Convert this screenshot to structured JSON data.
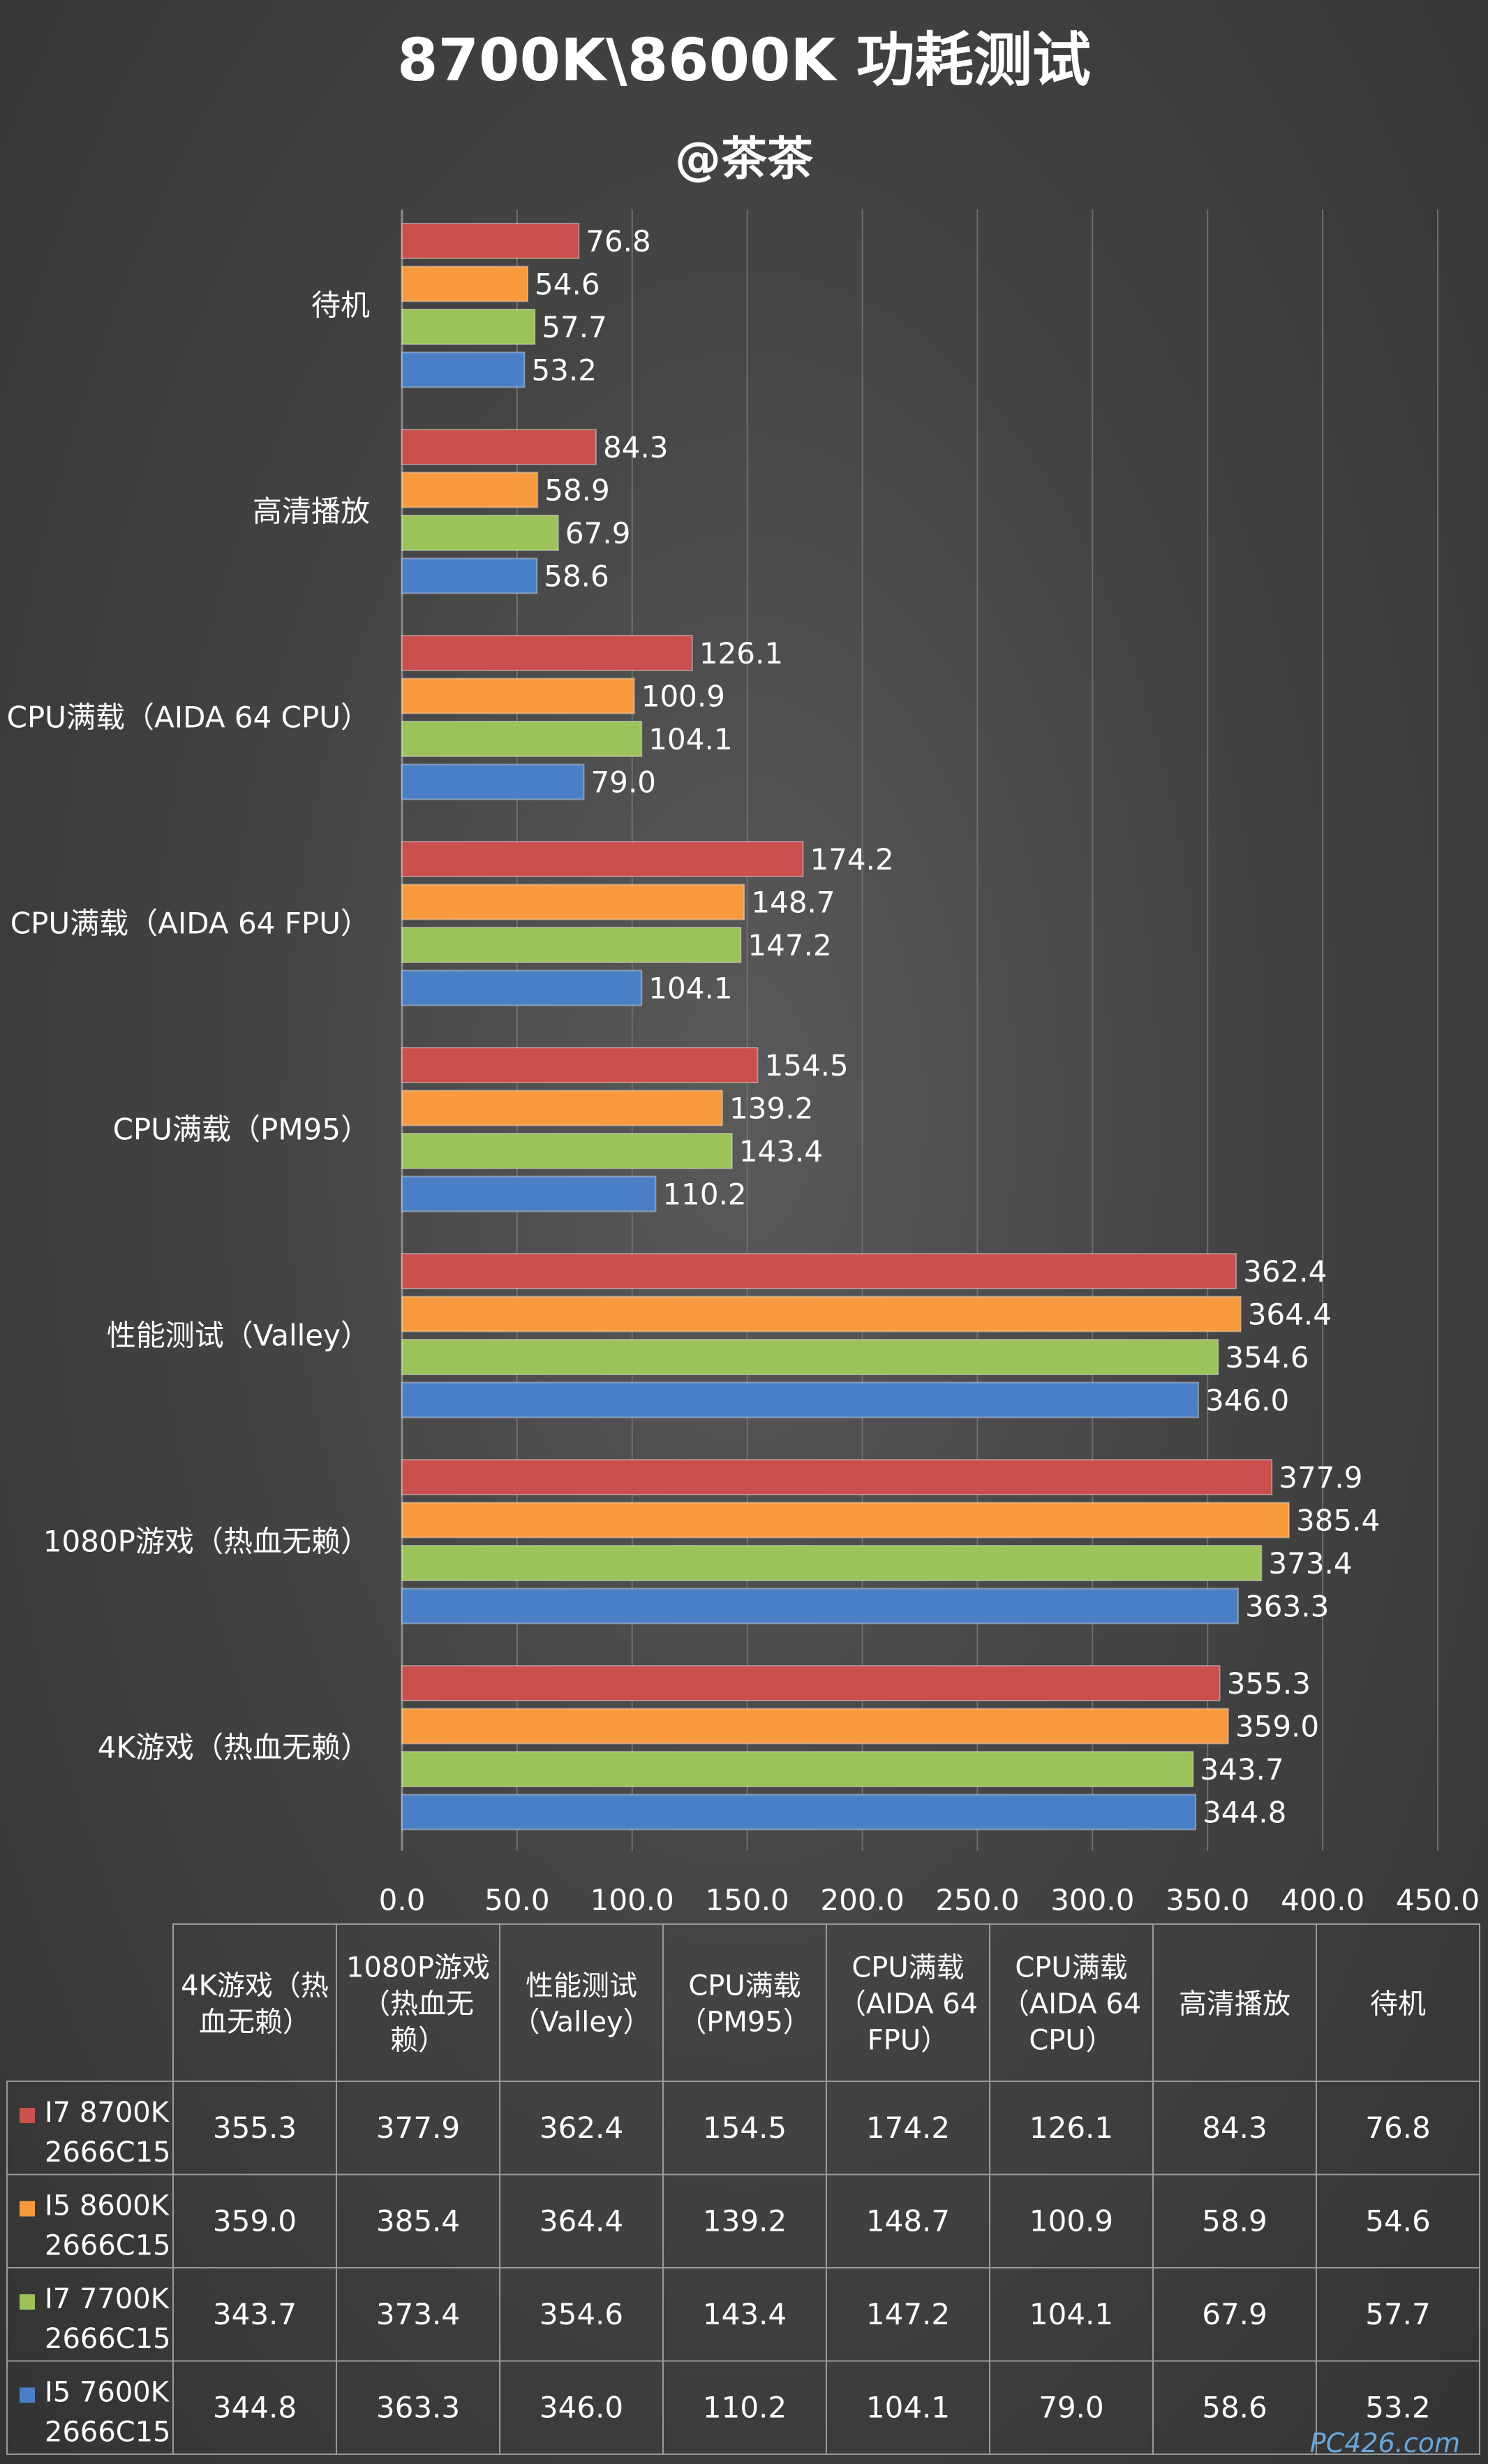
{
  "chart_data": {
    "type": "bar",
    "orientation": "horizontal",
    "title": "8700K\\8600K  功耗测试",
    "subtitle": "@茶茶",
    "categories": [
      "待机",
      "高清播放",
      "CPU满载（AIDA 64 CPU）",
      "CPU满载（AIDA 64 FPU）",
      "CPU满载（PM95）",
      "性能测试（Valley）",
      "1080P游戏（热血无赖）",
      "4K游戏（热血无赖）"
    ],
    "series": [
      {
        "name": "I7 8700K 2666C15",
        "color": "#c9504d",
        "values": [
          76.8,
          84.3,
          126.1,
          174.2,
          154.5,
          362.4,
          377.9,
          355.3
        ]
      },
      {
        "name": "I5 8600K 2666C15",
        "color": "#f79a3e",
        "values": [
          54.6,
          58.9,
          100.9,
          148.7,
          139.2,
          364.4,
          385.4,
          359.0
        ]
      },
      {
        "name": "I7 7700K 2666C15",
        "color": "#9bc35a",
        "values": [
          57.7,
          67.9,
          104.1,
          147.2,
          143.4,
          354.6,
          373.4,
          343.7
        ]
      },
      {
        "name": "I5 7600K 2666C15",
        "color": "#4a7fc5",
        "values": [
          53.2,
          58.6,
          79.0,
          104.1,
          110.2,
          346.0,
          363.3,
          344.8
        ]
      }
    ],
    "xlim": [
      0,
      450
    ],
    "x_ticks": [
      "0.0",
      "50.0",
      "100.0",
      "150.0",
      "200.0",
      "250.0",
      "300.0",
      "350.0",
      "400.0",
      "450.0"
    ],
    "grid": true,
    "legend": "in data table"
  },
  "table": {
    "headers": [
      [
        "4K游戏（热",
        "血无赖）"
      ],
      [
        "1080P游戏",
        "（热血无",
        "赖）"
      ],
      [
        "性能测试",
        "（Valley）"
      ],
      [
        "CPU满载",
        "（PM95）"
      ],
      [
        "CPU满载",
        "（AIDA 64",
        "FPU）"
      ],
      [
        "CPU满载",
        "（AIDA 64",
        "CPU）"
      ],
      [
        "高清播放"
      ],
      [
        "待机"
      ]
    ],
    "rows": [
      {
        "label": [
          "I7 8700K",
          "2666C15"
        ],
        "values": [
          "355.3",
          "377.9",
          "362.4",
          "154.5",
          "174.2",
          "126.1",
          "84.3",
          "76.8"
        ]
      },
      {
        "label": [
          "I5 8600K",
          "2666C15"
        ],
        "values": [
          "359.0",
          "385.4",
          "364.4",
          "139.2",
          "148.7",
          "100.9",
          "58.9",
          "54.6"
        ]
      },
      {
        "label": [
          "I7 7700K",
          "2666C15"
        ],
        "values": [
          "343.7",
          "373.4",
          "354.6",
          "143.4",
          "147.2",
          "104.1",
          "67.9",
          "57.7"
        ]
      },
      {
        "label": [
          "I5 7600K",
          "2666C15"
        ],
        "values": [
          "344.8",
          "363.3",
          "346.0",
          "110.2",
          "104.1",
          "79.0",
          "58.6",
          "53.2"
        ]
      }
    ]
  },
  "watermark": "PC426.com"
}
